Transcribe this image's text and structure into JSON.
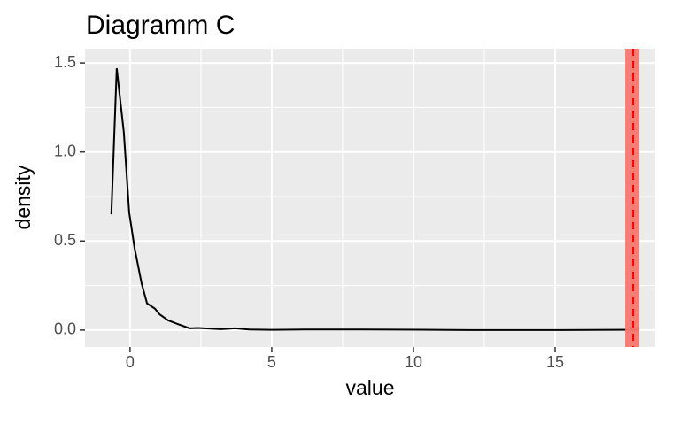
{
  "chart_data": {
    "type": "line",
    "title": "Diagramm C",
    "x_label": "value",
    "y_label": "density",
    "x": [
      -0.66,
      -0.47,
      -0.22,
      -0.03,
      0.16,
      0.41,
      0.6,
      0.88,
      1.03,
      1.34,
      1.66,
      2.1,
      2.4,
      3.2,
      3.7,
      4.2,
      5,
      6.2,
      8.2,
      10.2,
      12,
      15,
      17.97
    ],
    "values": [
      0.65,
      1.47,
      1.11,
      0.66,
      0.46,
      0.26,
      0.15,
      0.12,
      0.09,
      0.055,
      0.035,
      0.01,
      0.012,
      0.005,
      0.01,
      0.003,
      0.001,
      0.003,
      0.003,
      0.002,
      0,
      0,
      0.002
    ],
    "color": "#000000",
    "xlim": [
      -1.59,
      18.53
    ],
    "ylim": [
      -0.095,
      1.58
    ],
    "xticks": [
      0,
      5,
      10,
      15
    ],
    "yticks": [
      {
        "value": 0,
        "label": "0.0"
      },
      {
        "value": 0.5,
        "label": "0.5"
      },
      {
        "value": 1,
        "label": "1.0"
      },
      {
        "value": 1.5,
        "label": "1.5"
      }
    ],
    "x_minor_ticks": [
      2.5,
      7.5,
      12.5,
      17.5
    ],
    "y_minor_ticks": [
      0.25,
      0.75,
      1.25
    ],
    "grid": true,
    "band": [
      17.47,
      17.97
    ],
    "band_color": "#f8766d",
    "vline": 17.75,
    "vline_color": "#ff0000"
  }
}
